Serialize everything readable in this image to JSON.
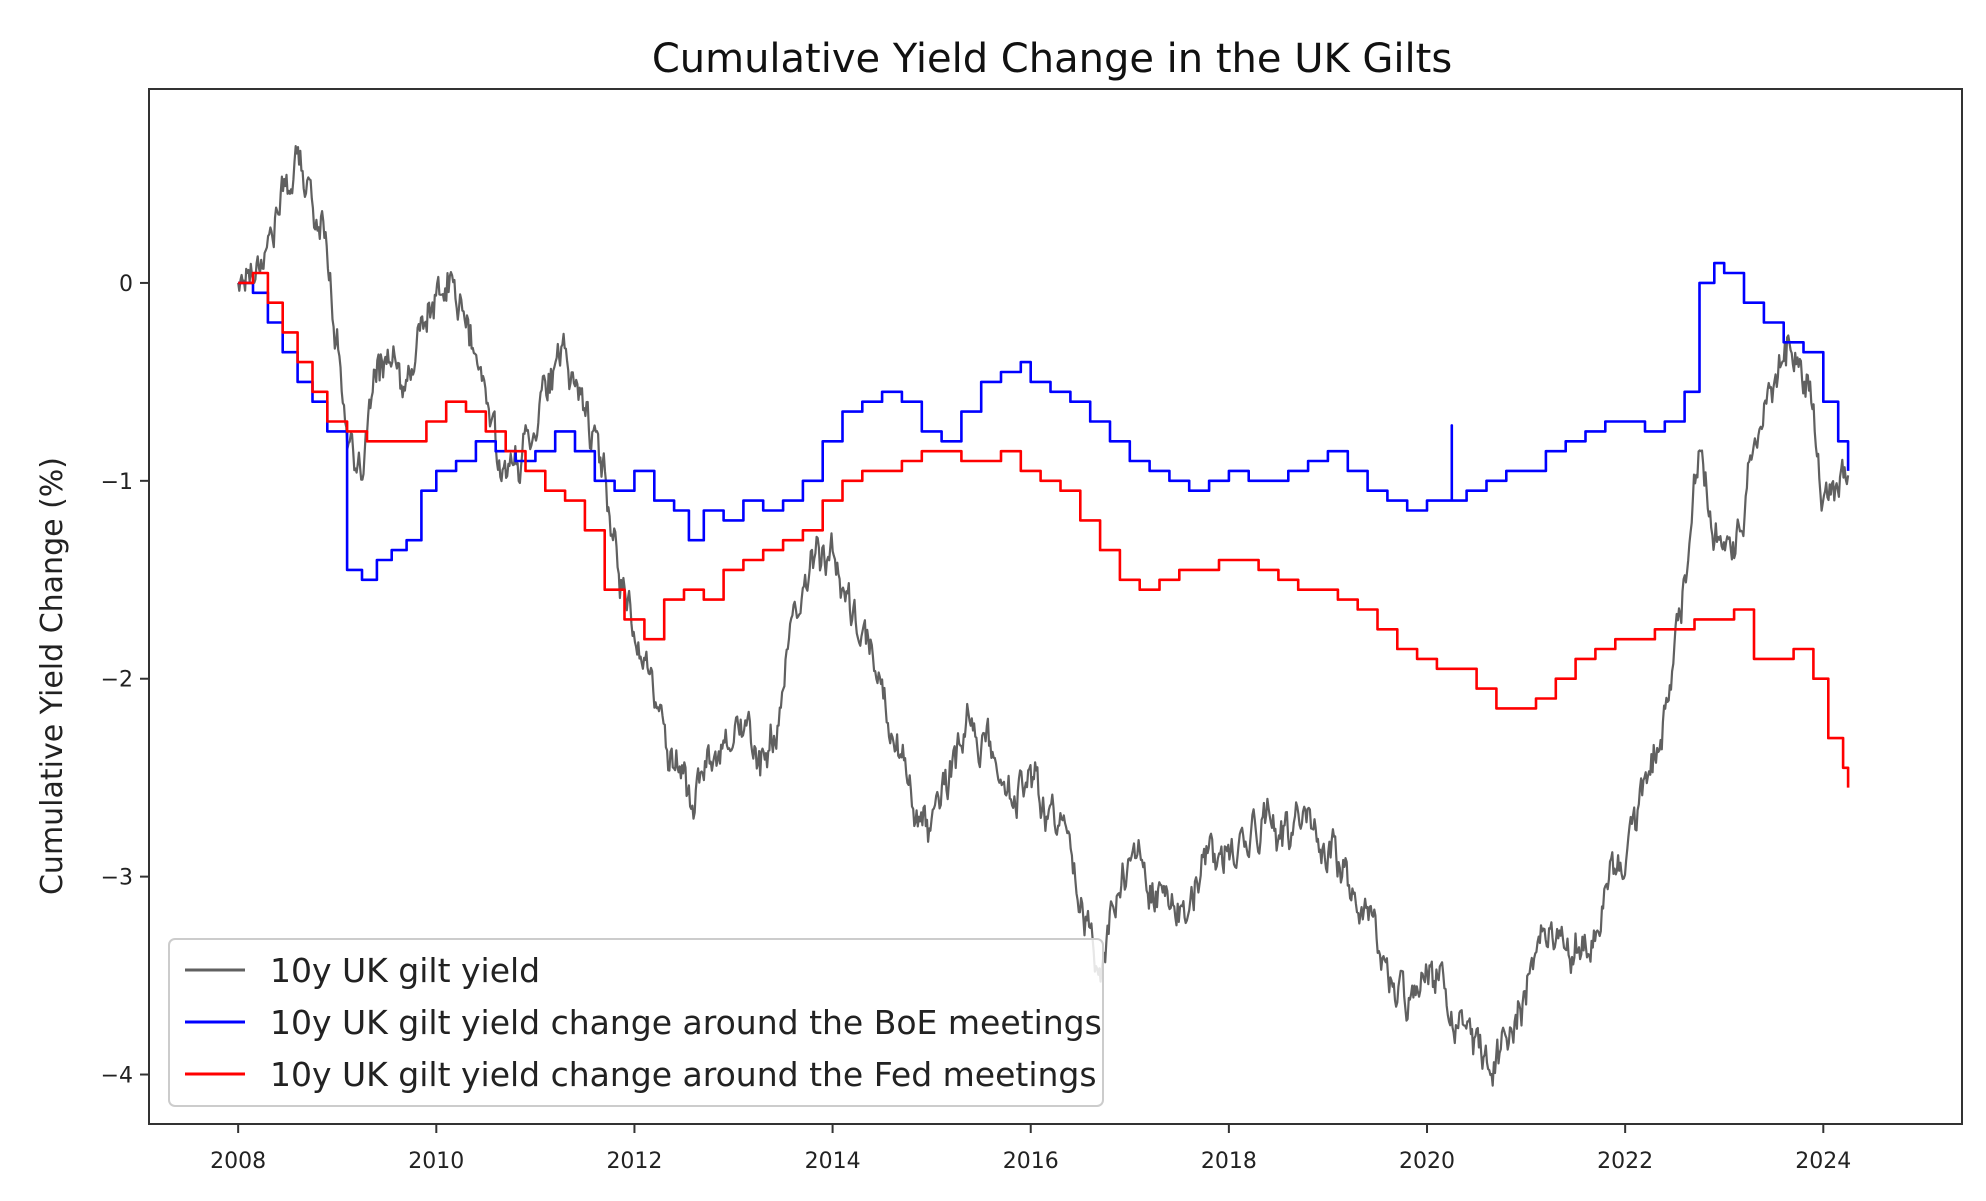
{
  "chart_data": {
    "type": "line",
    "title": "Cumulative Yield Change in the UK Gilts",
    "xlabel": "",
    "ylabel": "Cumulative Yield Change (%)",
    "xlim": [
      2007.1,
      2025.4
    ],
    "ylim": [
      -4.25,
      0.98
    ],
    "x_ticks": [
      2008,
      2010,
      2012,
      2014,
      2016,
      2018,
      2020,
      2022,
      2024
    ],
    "x_tick_labels": [
      "2008",
      "2010",
      "2012",
      "2014",
      "2016",
      "2018",
      "2020",
      "2022",
      "2024"
    ],
    "y_ticks": [
      0,
      -1,
      -2,
      -3,
      -4
    ],
    "y_tick_labels": [
      "0",
      "−1",
      "−2",
      "−3",
      "−4"
    ],
    "grid": false,
    "legend_position": "lower-left",
    "series": [
      {
        "name": "10y UK gilt yield",
        "color": "#606060",
        "style": "noisy",
        "x": [
          2008.0,
          2008.15,
          2008.3,
          2008.45,
          2008.6,
          2008.75,
          2008.9,
          2009.0,
          2009.1,
          2009.2,
          2009.35,
          2009.5,
          2009.7,
          2009.85,
          2010.0,
          2010.15,
          2010.3,
          2010.45,
          2010.6,
          2010.75,
          2010.9,
          2011.1,
          2011.3,
          2011.5,
          2011.7,
          2011.85,
          2012.0,
          2012.2,
          2012.4,
          2012.6,
          2012.8,
          2013.0,
          2013.2,
          2013.35,
          2013.5,
          2013.7,
          2013.85,
          2014.0,
          2014.2,
          2014.4,
          2014.6,
          2014.8,
          2015.0,
          2015.1,
          2015.2,
          2015.4,
          2015.6,
          2015.8,
          2016.0,
          2016.2,
          2016.4,
          2016.55,
          2016.7,
          2016.85,
          2017.0,
          2017.2,
          2017.4,
          2017.6,
          2017.8,
          2018.0,
          2018.2,
          2018.4,
          2018.6,
          2018.8,
          2019.0,
          2019.2,
          2019.4,
          2019.6,
          2019.8,
          2020.0,
          2020.2,
          2020.4,
          2020.6,
          2020.8,
          2021.0,
          2021.2,
          2021.4,
          2021.6,
          2021.8,
          2022.0,
          2022.2,
          2022.4,
          2022.6,
          2022.75,
          2022.9,
          2023.0,
          2023.15,
          2023.3,
          2023.5,
          2023.7,
          2023.85,
          2024.0,
          2024.15,
          2024.25
        ],
        "y": [
          0.0,
          0.1,
          0.2,
          0.45,
          0.6,
          0.4,
          0.2,
          -0.3,
          -0.7,
          -1.1,
          -0.6,
          -0.35,
          -0.6,
          -0.2,
          -0.1,
          0.0,
          -0.2,
          -0.5,
          -0.8,
          -1.0,
          -0.8,
          -0.5,
          -0.4,
          -0.6,
          -1.0,
          -1.45,
          -1.7,
          -2.1,
          -2.4,
          -2.6,
          -2.4,
          -2.2,
          -2.3,
          -2.45,
          -2.0,
          -1.6,
          -1.3,
          -1.4,
          -1.7,
          -1.9,
          -2.2,
          -2.6,
          -2.8,
          -2.6,
          -2.5,
          -2.2,
          -2.4,
          -2.6,
          -2.5,
          -2.7,
          -2.8,
          -3.2,
          -3.5,
          -3.1,
          -2.9,
          -3.0,
          -3.1,
          -3.2,
          -2.9,
          -2.9,
          -2.8,
          -2.7,
          -2.8,
          -2.7,
          -2.85,
          -3.0,
          -3.2,
          -3.5,
          -3.6,
          -3.4,
          -3.6,
          -3.85,
          -3.95,
          -3.8,
          -3.6,
          -3.2,
          -3.3,
          -3.4,
          -3.1,
          -2.9,
          -2.5,
          -2.2,
          -1.5,
          -0.8,
          -1.2,
          -1.4,
          -1.3,
          -0.8,
          -0.5,
          -0.3,
          -0.5,
          -1.1,
          -1.0,
          -0.95
        ],
        "seed": 17
      },
      {
        "name": "10y UK gilt yield change around the BoE meetings",
        "color": "#0000ff",
        "style": "step",
        "x": [
          2008.0,
          2008.15,
          2008.3,
          2008.45,
          2008.6,
          2008.75,
          2008.9,
          2009.1,
          2009.25,
          2009.4,
          2009.55,
          2009.7,
          2009.85,
          2010.0,
          2010.2,
          2010.4,
          2010.6,
          2010.8,
          2011.0,
          2011.2,
          2011.4,
          2011.6,
          2011.8,
          2012.0,
          2012.2,
          2012.4,
          2012.55,
          2012.7,
          2012.9,
          2013.1,
          2013.3,
          2013.5,
          2013.7,
          2013.9,
          2014.1,
          2014.3,
          2014.5,
          2014.7,
          2014.9,
          2015.1,
          2015.3,
          2015.5,
          2015.7,
          2015.9,
          2016.0,
          2016.2,
          2016.4,
          2016.6,
          2016.8,
          2017.0,
          2017.2,
          2017.4,
          2017.6,
          2017.8,
          2018.0,
          2018.2,
          2018.4,
          2018.6,
          2018.8,
          2019.0,
          2019.2,
          2019.4,
          2019.6,
          2019.8,
          2020.0,
          2020.2,
          2020.4,
          2020.6,
          2020.8,
          2021.0,
          2021.2,
          2021.4,
          2021.6,
          2021.8,
          2022.0,
          2022.2,
          2022.4,
          2022.6,
          2022.75,
          2022.9,
          2023.0,
          2023.2,
          2023.4,
          2023.6,
          2023.8,
          2024.0,
          2024.15,
          2024.25
        ],
        "y": [
          0.0,
          -0.05,
          -0.2,
          -0.35,
          -0.5,
          -0.6,
          -0.75,
          -1.45,
          -1.5,
          -1.4,
          -1.35,
          -1.3,
          -1.05,
          -0.95,
          -0.9,
          -0.8,
          -0.85,
          -0.9,
          -0.85,
          -0.75,
          -0.85,
          -1.0,
          -1.05,
          -0.95,
          -1.1,
          -1.15,
          -1.3,
          -1.15,
          -1.2,
          -1.1,
          -1.15,
          -1.1,
          -1.0,
          -0.8,
          -0.65,
          -0.6,
          -0.55,
          -0.6,
          -0.75,
          -0.8,
          -0.65,
          -0.5,
          -0.45,
          -0.4,
          -0.5,
          -0.55,
          -0.6,
          -0.7,
          -0.8,
          -0.9,
          -0.95,
          -1.0,
          -1.05,
          -1.0,
          -0.95,
          -1.0,
          -1.0,
          -0.95,
          -0.9,
          -0.85,
          -0.95,
          -1.05,
          -1.1,
          -1.15,
          -1.1,
          -1.1,
          -1.05,
          -1.0,
          -0.95,
          -0.95,
          -0.85,
          -0.8,
          -0.75,
          -0.7,
          -0.7,
          -0.75,
          -0.7,
          -0.55,
          0.0,
          0.1,
          0.05,
          -0.1,
          -0.2,
          -0.3,
          -0.35,
          -0.6,
          -0.8,
          -0.95
        ],
        "spike": {
          "x": 2020.25,
          "y": -0.72
        }
      },
      {
        "name": "10y UK gilt yield change around the Fed meetings",
        "color": "#ff0000",
        "style": "step",
        "x": [
          2008.0,
          2008.15,
          2008.3,
          2008.45,
          2008.6,
          2008.75,
          2008.9,
          2009.1,
          2009.3,
          2009.5,
          2009.7,
          2009.9,
          2010.1,
          2010.3,
          2010.5,
          2010.7,
          2010.9,
          2011.1,
          2011.3,
          2011.5,
          2011.7,
          2011.9,
          2012.1,
          2012.3,
          2012.5,
          2012.7,
          2012.9,
          2013.1,
          2013.3,
          2013.5,
          2013.7,
          2013.9,
          2014.1,
          2014.3,
          2014.5,
          2014.7,
          2014.9,
          2015.1,
          2015.3,
          2015.5,
          2015.7,
          2015.9,
          2016.1,
          2016.3,
          2016.5,
          2016.7,
          2016.9,
          2017.1,
          2017.3,
          2017.5,
          2017.7,
          2017.9,
          2018.1,
          2018.3,
          2018.5,
          2018.7,
          2018.9,
          2019.1,
          2019.3,
          2019.5,
          2019.7,
          2019.9,
          2020.1,
          2020.3,
          2020.5,
          2020.7,
          2020.9,
          2021.1,
          2021.3,
          2021.5,
          2021.7,
          2021.9,
          2022.1,
          2022.3,
          2022.5,
          2022.7,
          2022.9,
          2023.1,
          2023.3,
          2023.5,
          2023.7,
          2023.9,
          2024.05,
          2024.2,
          2024.25
        ],
        "y": [
          0.0,
          0.05,
          -0.1,
          -0.25,
          -0.4,
          -0.55,
          -0.7,
          -0.75,
          -0.8,
          -0.8,
          -0.8,
          -0.7,
          -0.6,
          -0.65,
          -0.75,
          -0.85,
          -0.95,
          -1.05,
          -1.1,
          -1.25,
          -1.55,
          -1.7,
          -1.8,
          -1.6,
          -1.55,
          -1.6,
          -1.45,
          -1.4,
          -1.35,
          -1.3,
          -1.25,
          -1.1,
          -1.0,
          -0.95,
          -0.95,
          -0.9,
          -0.85,
          -0.85,
          -0.9,
          -0.9,
          -0.85,
          -0.95,
          -1.0,
          -1.05,
          -1.2,
          -1.35,
          -1.5,
          -1.55,
          -1.5,
          -1.45,
          -1.45,
          -1.4,
          -1.4,
          -1.45,
          -1.5,
          -1.55,
          -1.55,
          -1.6,
          -1.65,
          -1.75,
          -1.85,
          -1.9,
          -1.95,
          -1.95,
          -2.05,
          -2.15,
          -2.15,
          -2.1,
          -2.0,
          -1.9,
          -1.85,
          -1.8,
          -1.8,
          -1.75,
          -1.75,
          -1.7,
          -1.7,
          -1.65,
          -1.9,
          -1.9,
          -1.85,
          -2.0,
          -2.3,
          -2.45,
          -2.55
        ],
        "spike": null
      }
    ]
  }
}
